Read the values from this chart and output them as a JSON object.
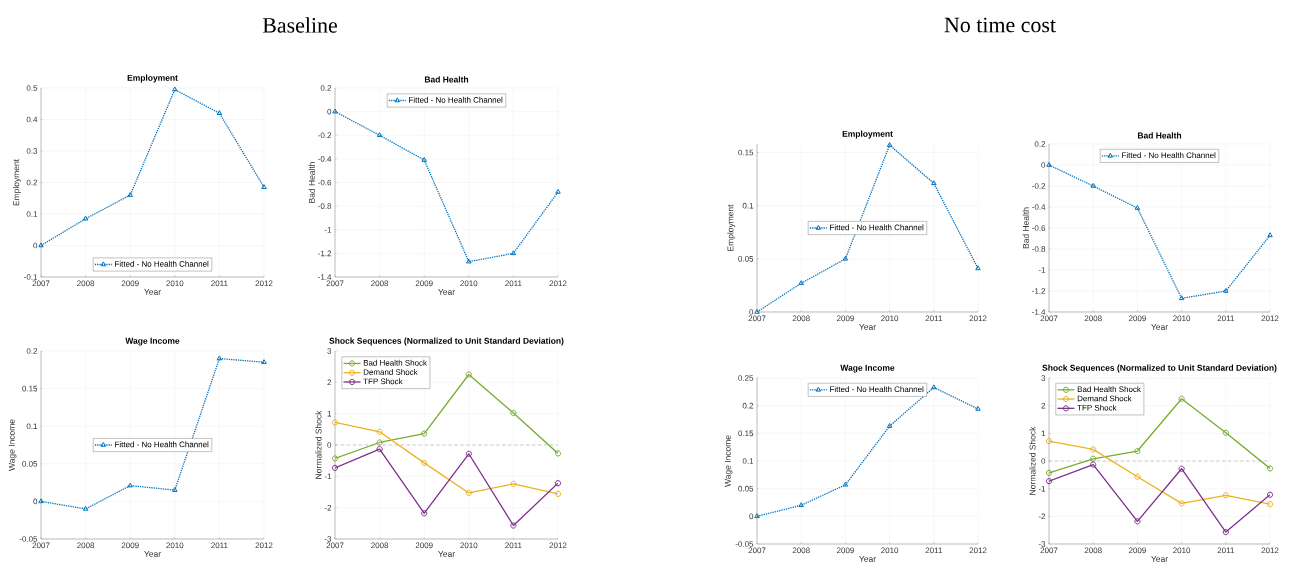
{
  "chart_data": [
    {
      "type": "line",
      "title": "Employment",
      "xlabel": "Year",
      "ylabel": "Employment",
      "annotations": [
        "Baseline"
      ],
      "x": [
        2007,
        2008,
        2009,
        2010,
        2011,
        2012
      ],
      "series": [
        {
          "name": "Fitted - No Health Channel",
          "color": "#0072bd",
          "values": [
            0,
            0.085,
            0.16,
            0.495,
            0.42,
            0.185
          ]
        }
      ],
      "xlim": [
        2007,
        2012
      ],
      "xticks": [
        2007,
        2008,
        2009,
        2010,
        2011,
        2012
      ],
      "ylim": [
        -0.1,
        0.5
      ],
      "yticks": [
        -0.1,
        0,
        0.1,
        0.2,
        0.3,
        0.4,
        0.5
      ],
      "grid": true,
      "legend": "bottom",
      "marker": "triangle",
      "line_style": "dotted"
    },
    {
      "type": "line",
      "title": "Bad Health",
      "xlabel": "Year",
      "ylabel": "Bad Health",
      "x": [
        2007,
        2008,
        2009,
        2010,
        2011,
        2012
      ],
      "series": [
        {
          "name": "Fitted - No Health Channel",
          "color": "#0072bd",
          "values": [
            0,
            -0.2,
            -0.41,
            -1.27,
            -1.2,
            -0.68
          ]
        }
      ],
      "xlim": [
        2007,
        2012
      ],
      "xticks": [
        2007,
        2008,
        2009,
        2010,
        2011,
        2012
      ],
      "ylim": [
        -1.4,
        0.2
      ],
      "yticks": [
        -1.4,
        -1.2,
        -1,
        -0.8,
        -0.6,
        -0.4,
        -0.2,
        0,
        0.2
      ],
      "grid": true,
      "legend": "top",
      "marker": "triangle",
      "line_style": "dotted"
    },
    {
      "type": "line",
      "title": "Wage Income",
      "xlabel": "Year",
      "ylabel": "Wage Income",
      "x": [
        2007,
        2008,
        2009,
        2010,
        2011,
        2012
      ],
      "series": [
        {
          "name": "Fitted - No Health Channel",
          "color": "#0072bd",
          "values": [
            0,
            -0.01,
            0.021,
            0.015,
            0.19,
            0.185
          ]
        }
      ],
      "xlim": [
        2007,
        2012
      ],
      "xticks": [
        2007,
        2008,
        2009,
        2010,
        2011,
        2012
      ],
      "ylim": [
        -0.05,
        0.2
      ],
      "yticks": [
        -0.05,
        0,
        0.05,
        0.1,
        0.15,
        0.2
      ],
      "grid": true,
      "legend": "center",
      "marker": "triangle",
      "line_style": "dotted"
    },
    {
      "type": "line",
      "title": "Shock Sequences (Normalized to Unit Standard Deviation)",
      "xlabel": "Year",
      "ylabel": "Normalized Shock",
      "x": [
        2007,
        2008,
        2009,
        2010,
        2011,
        2012
      ],
      "series": [
        {
          "name": "Bad Health Shock",
          "color": "#77ac30",
          "values": [
            -0.43,
            0.08,
            0.36,
            2.25,
            1.02,
            -0.27
          ]
        },
        {
          "name": "Demand Shock",
          "color": "#edb120",
          "values": [
            0.72,
            0.42,
            -0.57,
            -1.53,
            -1.24,
            -1.56
          ]
        },
        {
          "name": "TFP Shock",
          "color": "#7e2f8e",
          "values": [
            -0.73,
            -0.13,
            -2.18,
            -0.28,
            -2.57,
            -1.22
          ]
        }
      ],
      "ref_lines": [
        {
          "axis": "y",
          "value": 0,
          "color": "#808080",
          "line_style": "dashed"
        }
      ],
      "xlim": [
        2007,
        2012
      ],
      "xticks": [
        2007,
        2008,
        2009,
        2010,
        2011,
        2012
      ],
      "ylim": [
        -3,
        3
      ],
      "yticks": [
        -3,
        -2,
        -1,
        0,
        1,
        2,
        3
      ],
      "grid": true,
      "legend": "top left",
      "marker": "circle",
      "line_style": "solid"
    },
    {
      "type": "line",
      "title": "Employment",
      "xlabel": "Year",
      "ylabel": "Employment",
      "annotations": [
        "No time cost"
      ],
      "x": [
        2007,
        2008,
        2009,
        2010,
        2011,
        2012
      ],
      "series": [
        {
          "name": "Fitted - No Health Channel",
          "color": "#0072bd",
          "values": [
            0,
            0.027,
            0.05,
            0.157,
            0.121,
            0.041
          ]
        }
      ],
      "xlim": [
        2007,
        2012
      ],
      "xticks": [
        2007,
        2008,
        2009,
        2010,
        2011,
        2012
      ],
      "ylim": [
        0,
        0.158
      ],
      "yticks": [
        0,
        0.05,
        0.1,
        0.15
      ],
      "grid": true,
      "legend": "center",
      "marker": "triangle",
      "line_style": "dotted"
    },
    {
      "type": "line",
      "title": "Bad Health",
      "xlabel": "Year",
      "ylabel": "Bad Health",
      "x": [
        2007,
        2008,
        2009,
        2010,
        2011,
        2012
      ],
      "series": [
        {
          "name": "Fitted - No Health Channel",
          "color": "#0072bd",
          "values": [
            0,
            -0.2,
            -0.41,
            -1.27,
            -1.2,
            -0.67
          ]
        }
      ],
      "xlim": [
        2007,
        2012
      ],
      "xticks": [
        2007,
        2008,
        2009,
        2010,
        2011,
        2012
      ],
      "ylim": [
        -1.4,
        0.2
      ],
      "yticks": [
        -1.4,
        -1.2,
        -1,
        -0.8,
        -0.6,
        -0.4,
        -0.2,
        0,
        0.2
      ],
      "grid": true,
      "legend": "top",
      "marker": "triangle",
      "line_style": "dotted"
    },
    {
      "type": "line",
      "title": "Wage Income",
      "xlabel": "Year",
      "ylabel": "Wage Income",
      "x": [
        2007,
        2008,
        2009,
        2010,
        2011,
        2012
      ],
      "series": [
        {
          "name": "Fitted - No Health Channel",
          "color": "#0072bd",
          "values": [
            0,
            0.02,
            0.057,
            0.163,
            0.233,
            0.194
          ]
        }
      ],
      "xlim": [
        2007,
        2012
      ],
      "xticks": [
        2007,
        2008,
        2009,
        2010,
        2011,
        2012
      ],
      "ylim": [
        -0.05,
        0.25
      ],
      "yticks": [
        -0.05,
        0,
        0.05,
        0.1,
        0.15,
        0.2,
        0.25
      ],
      "grid": true,
      "legend": "top",
      "marker": "triangle",
      "line_style": "dotted"
    },
    {
      "type": "line",
      "title": "Shock Sequences (Normalized to Unit Standard Deviation)",
      "xlabel": "Year",
      "ylabel": "Normalized Shock",
      "x": [
        2007,
        2008,
        2009,
        2010,
        2011,
        2012
      ],
      "series": [
        {
          "name": "Bad Health Shock",
          "color": "#77ac30",
          "values": [
            -0.43,
            0.08,
            0.36,
            2.25,
            1.02,
            -0.27
          ]
        },
        {
          "name": "Demand Shock",
          "color": "#edb120",
          "values": [
            0.72,
            0.42,
            -0.57,
            -1.53,
            -1.24,
            -1.56
          ]
        },
        {
          "name": "TFP Shock",
          "color": "#7e2f8e",
          "values": [
            -0.73,
            -0.13,
            -2.18,
            -0.28,
            -2.57,
            -1.22
          ]
        }
      ],
      "ref_lines": [
        {
          "axis": "y",
          "value": 0,
          "color": "#808080",
          "line_style": "dashed"
        }
      ],
      "xlim": [
        2007,
        2012
      ],
      "xticks": [
        2007,
        2008,
        2009,
        2010,
        2011,
        2012
      ],
      "ylim": [
        -3,
        3
      ],
      "yticks": [
        -3,
        -2,
        -1,
        0,
        1,
        2,
        3
      ],
      "grid": true,
      "legend": "top left",
      "marker": "circle",
      "line_style": "solid"
    }
  ]
}
